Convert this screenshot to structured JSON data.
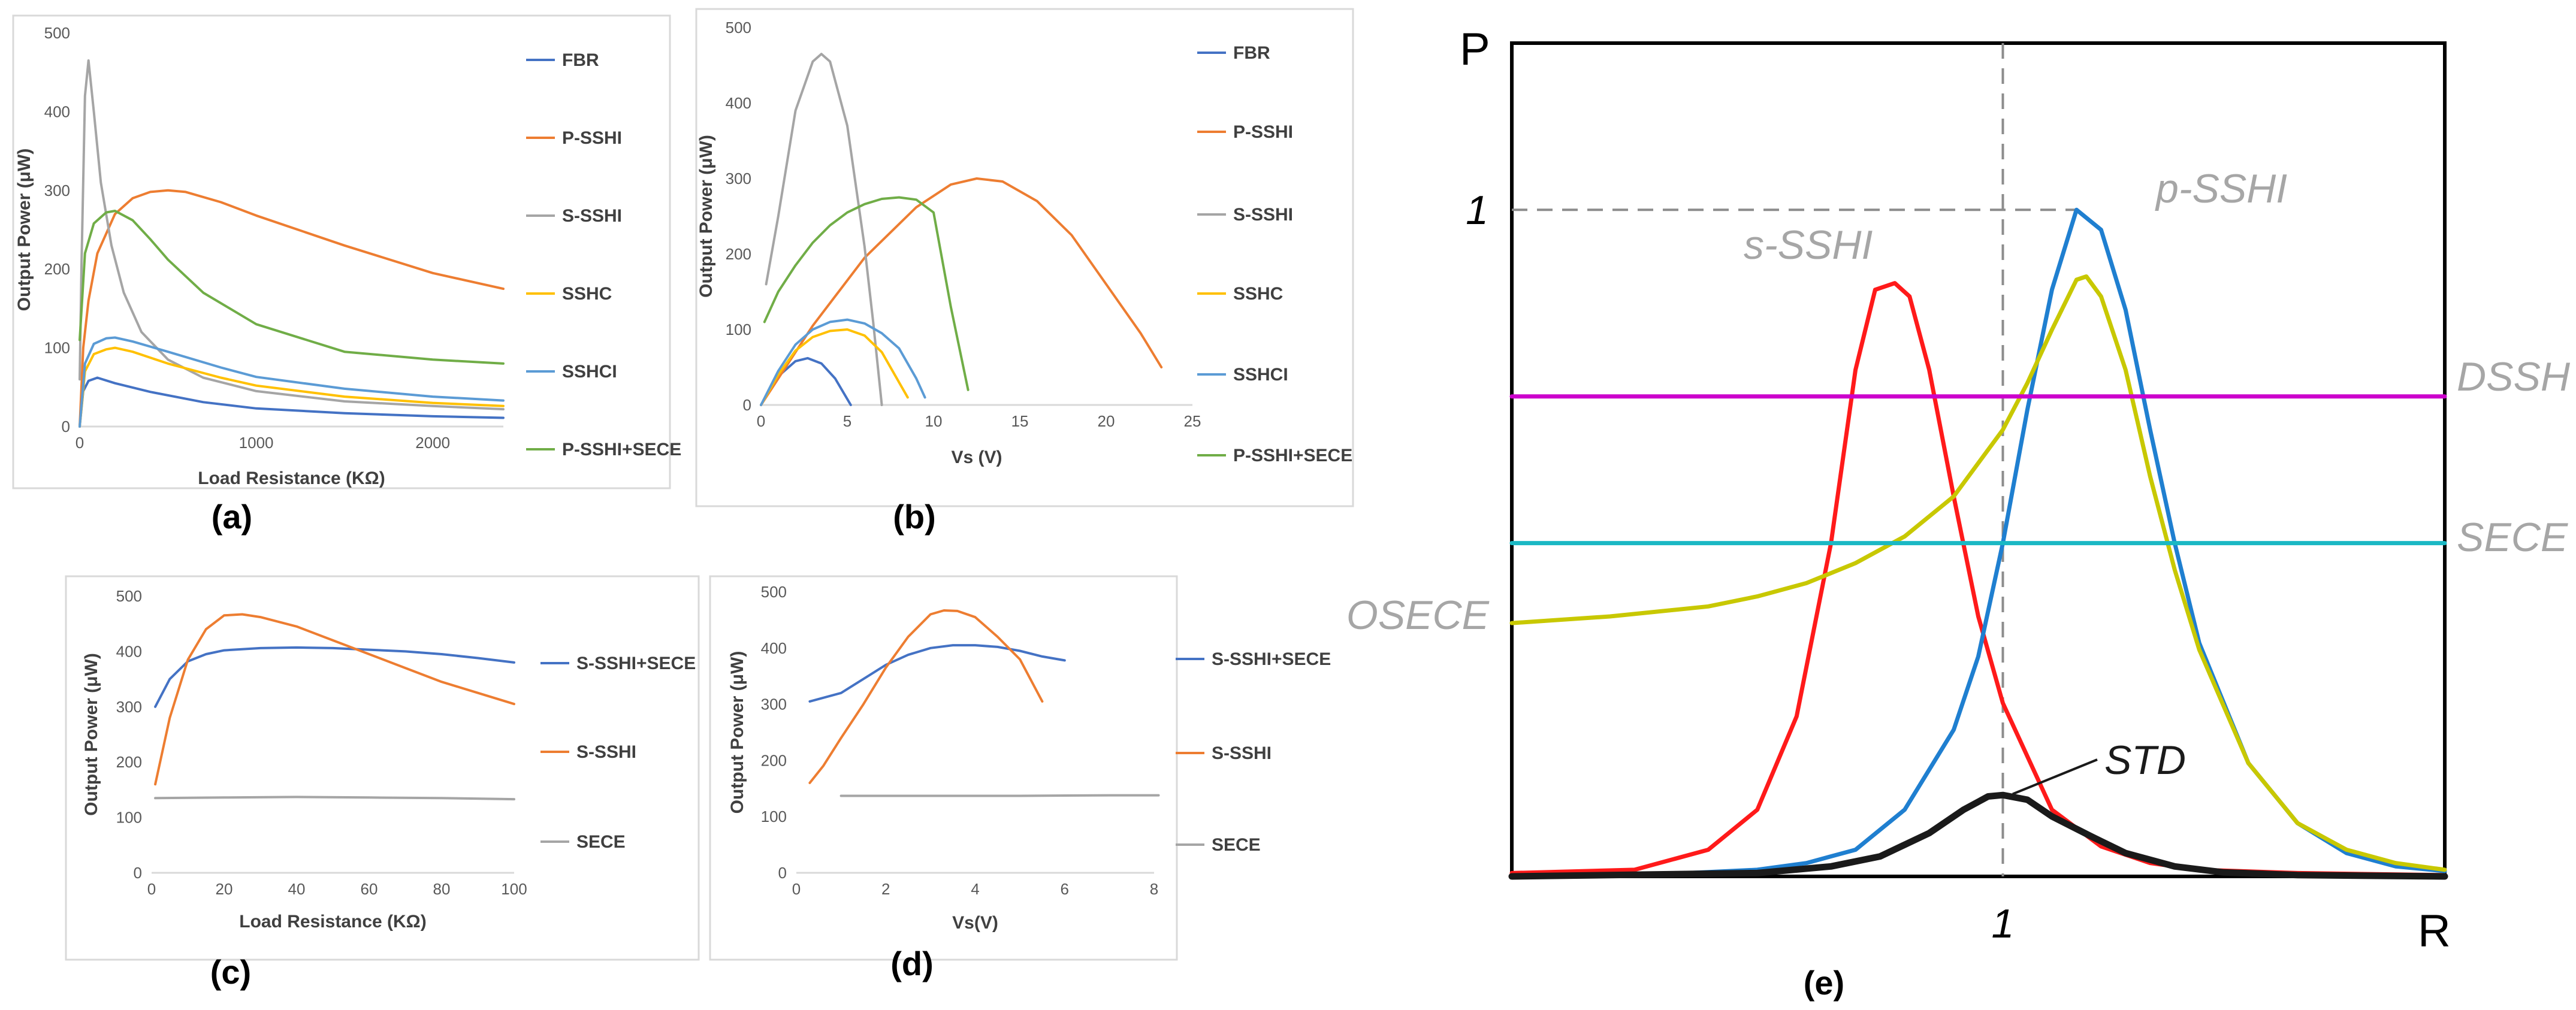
{
  "chart_data": [
    {
      "panel_label": "(a)",
      "type": "line",
      "xlabel": "Load Resistance (KΩ)",
      "ylabel": "Output Power (μW)",
      "xlim": [
        0,
        2400
      ],
      "ylim": [
        0,
        500
      ],
      "xticks": [
        0,
        1000,
        2000
      ],
      "yticks": [
        0,
        100,
        200,
        300,
        400,
        500
      ],
      "legend_position": "right",
      "series": [
        {
          "name": "FBR",
          "color": "#4472c4",
          "x": [
            0,
            20,
            50,
            100,
            200,
            400,
            700,
            1000,
            1500,
            2000,
            2400
          ],
          "y": [
            0,
            45,
            58,
            62,
            55,
            44,
            31,
            23,
            17,
            13,
            11
          ]
        },
        {
          "name": "P-SSHI",
          "color": "#ed7d31",
          "x": [
            0,
            20,
            50,
            100,
            200,
            300,
            400,
            500,
            600,
            800,
            1000,
            1500,
            2000,
            2400
          ],
          "y": [
            0,
            100,
            160,
            220,
            270,
            290,
            298,
            300,
            298,
            285,
            268,
            230,
            195,
            175
          ]
        },
        {
          "name": "S-SSHI",
          "color": "#a5a5a5",
          "x": [
            0,
            10,
            30,
            50,
            80,
            120,
            180,
            250,
            350,
            500,
            700,
            1000,
            1500,
            2000,
            2400
          ],
          "y": [
            60,
            200,
            420,
            465,
            400,
            310,
            230,
            170,
            120,
            85,
            62,
            45,
            32,
            26,
            22
          ]
        },
        {
          "name": "SSHC",
          "color": "#ffc000",
          "x": [
            0,
            30,
            80,
            150,
            200,
            300,
            500,
            800,
            1000,
            1500,
            2000,
            2400
          ],
          "y": [
            0,
            70,
            92,
            98,
            100,
            95,
            80,
            62,
            52,
            38,
            30,
            26
          ]
        },
        {
          "name": "SSHCI",
          "color": "#5b9bd5",
          "x": [
            0,
            30,
            80,
            150,
            200,
            300,
            500,
            800,
            1000,
            1500,
            2000,
            2400
          ],
          "y": [
            0,
            80,
            105,
            112,
            113,
            108,
            95,
            75,
            63,
            48,
            38,
            33
          ]
        },
        {
          "name": "P-SSHI+SECE",
          "color": "#70ad47",
          "x": [
            0,
            30,
            80,
            150,
            200,
            300,
            400,
            500,
            700,
            1000,
            1500,
            2000,
            2400
          ],
          "y": [
            110,
            220,
            258,
            272,
            274,
            262,
            238,
            212,
            170,
            130,
            95,
            85,
            80
          ]
        }
      ]
    },
    {
      "panel_label": "(b)",
      "type": "line",
      "xlabel": "Vs (V)",
      "ylabel": "Output Power (μW)",
      "xlim": [
        0,
        25
      ],
      "ylim": [
        0,
        500
      ],
      "xticks": [
        0,
        5,
        10,
        15,
        20,
        25
      ],
      "yticks": [
        0,
        100,
        200,
        300,
        400,
        500
      ],
      "legend_position": "right",
      "series": [
        {
          "name": "FBR",
          "color": "#4472c4",
          "x": [
            0,
            1,
            2,
            2.7,
            3.5,
            4.3,
            5.2
          ],
          "y": [
            0,
            38,
            58,
            62,
            55,
            35,
            0
          ]
        },
        {
          "name": "P-SSHI",
          "color": "#ed7d31",
          "x": [
            0,
            3,
            6,
            9,
            11,
            12.5,
            14,
            16,
            18,
            20,
            22,
            23.2
          ],
          "y": [
            0,
            105,
            195,
            262,
            292,
            300,
            296,
            270,
            225,
            160,
            95,
            50
          ]
        },
        {
          "name": "S-SSHI",
          "color": "#a5a5a5",
          "x": [
            0.3,
            1,
            2,
            3,
            3.5,
            4,
            5,
            6,
            6.5,
            7
          ],
          "y": [
            160,
            250,
            390,
            455,
            465,
            455,
            370,
            210,
            110,
            0
          ]
        },
        {
          "name": "SSHC",
          "color": "#ffc000",
          "x": [
            0,
            1,
            2,
            3,
            4,
            5,
            6,
            7,
            8,
            8.5
          ],
          "y": [
            0,
            40,
            72,
            90,
            98,
            100,
            92,
            70,
            30,
            10
          ]
        },
        {
          "name": "SSHCI",
          "color": "#5b9bd5",
          "x": [
            0,
            1,
            2,
            3,
            4,
            5,
            6,
            7,
            8,
            9,
            9.5
          ],
          "y": [
            0,
            45,
            80,
            100,
            110,
            113,
            108,
            95,
            75,
            35,
            10
          ]
        },
        {
          "name": "P-SSHI+SECE",
          "color": "#70ad47",
          "x": [
            0.2,
            1,
            2,
            3,
            4,
            5,
            6,
            7,
            8,
            9,
            10,
            11,
            12
          ],
          "y": [
            110,
            150,
            185,
            215,
            238,
            255,
            266,
            273,
            275,
            272,
            255,
            130,
            20
          ]
        }
      ]
    },
    {
      "panel_label": "(c)",
      "type": "line",
      "xlabel": "Load Resistance (KΩ)",
      "ylabel": "Output Power (μW)",
      "xlim": [
        0,
        100
      ],
      "ylim": [
        0,
        500
      ],
      "xticks": [
        0,
        20,
        40,
        60,
        80,
        100
      ],
      "yticks": [
        0,
        100,
        200,
        300,
        400,
        500
      ],
      "legend_position": "right",
      "series": [
        {
          "name": "S-SSHI+SECE",
          "color": "#4472c4",
          "x": [
            1,
            5,
            10,
            15,
            20,
            30,
            40,
            50,
            60,
            70,
            80,
            90,
            100
          ],
          "y": [
            300,
            350,
            382,
            395,
            402,
            406,
            407,
            406,
            403,
            400,
            395,
            388,
            380
          ]
        },
        {
          "name": "S-SSHI",
          "color": "#ed7d31",
          "x": [
            1,
            5,
            10,
            15,
            20,
            25,
            30,
            40,
            50,
            60,
            70,
            80,
            90,
            100
          ],
          "y": [
            160,
            280,
            385,
            440,
            465,
            467,
            462,
            445,
            420,
            395,
            370,
            345,
            325,
            305
          ]
        },
        {
          "name": "SECE",
          "color": "#a5a5a5",
          "x": [
            1,
            20,
            40,
            60,
            80,
            100
          ],
          "y": [
            135,
            136,
            137,
            136,
            135,
            133
          ]
        }
      ]
    },
    {
      "panel_label": "(d)",
      "type": "line",
      "xlabel": "Vs(V)",
      "ylabel": "Output Power (μW)",
      "xlim": [
        0,
        8
      ],
      "ylim": [
        0,
        500
      ],
      "xticks": [
        0,
        2,
        4,
        6,
        8
      ],
      "yticks": [
        0,
        100,
        200,
        300,
        400,
        500
      ],
      "legend_position": "right",
      "series": [
        {
          "name": "S-SSHI+SECE",
          "color": "#4472c4",
          "x": [
            0.3,
            1,
            1.5,
            2,
            2.5,
            3,
            3.5,
            4,
            4.5,
            5,
            5.5,
            6
          ],
          "y": [
            305,
            320,
            345,
            370,
            388,
            400,
            405,
            405,
            402,
            395,
            385,
            378
          ]
        },
        {
          "name": "S-SSHI",
          "color": "#ed7d31",
          "x": [
            0.3,
            0.6,
            1,
            1.5,
            2,
            2.5,
            3,
            3.3,
            3.6,
            4,
            4.5,
            5,
            5.5
          ],
          "y": [
            160,
            190,
            240,
            300,
            365,
            420,
            460,
            467,
            466,
            455,
            420,
            380,
            305
          ]
        },
        {
          "name": "SECE",
          "color": "#a5a5a5",
          "x": [
            1,
            3,
            5,
            7,
            8.1
          ],
          "y": [
            137,
            137,
            137,
            138,
            138
          ]
        }
      ]
    },
    {
      "panel_label": "(e)",
      "type": "line",
      "xlabel": "R",
      "ylabel": "P",
      "xlim": [
        0,
        1.9
      ],
      "ylim": [
        0,
        1.25
      ],
      "xticks": [
        1
      ],
      "xtick_labels": [
        "1"
      ],
      "yticks": [
        1
      ],
      "ytick_labels": [
        "1"
      ],
      "grid": false,
      "series": [
        {
          "name": "s-SSHI",
          "color": "#ff1a1a",
          "x": [
            0,
            0.25,
            0.4,
            0.5,
            0.58,
            0.65,
            0.7,
            0.74,
            0.78,
            0.81,
            0.85,
            0.9,
            0.95,
            1.0,
            1.1,
            1.2,
            1.3,
            1.4,
            1.6,
            1.9
          ],
          "y": [
            0.005,
            0.01,
            0.04,
            0.1,
            0.24,
            0.5,
            0.76,
            0.88,
            0.89,
            0.87,
            0.76,
            0.57,
            0.39,
            0.26,
            0.1,
            0.045,
            0.02,
            0.01,
            0.005,
            0.002
          ]
        },
        {
          "name": "p-SSHI",
          "color": "#1f7fd0",
          "x": [
            0,
            0.3,
            0.5,
            0.6,
            0.7,
            0.8,
            0.9,
            0.95,
            1.0,
            1.05,
            1.1,
            1.15,
            1.2,
            1.25,
            1.3,
            1.35,
            1.4,
            1.5,
            1.6,
            1.7,
            1.8,
            1.9
          ],
          "y": [
            0,
            0.003,
            0.01,
            0.02,
            0.04,
            0.1,
            0.22,
            0.33,
            0.5,
            0.7,
            0.88,
            1.0,
            0.97,
            0.85,
            0.67,
            0.5,
            0.35,
            0.17,
            0.08,
            0.035,
            0.015,
            0.008
          ]
        },
        {
          "name": "OSECE",
          "color": "#c8c800",
          "x": [
            0,
            0.2,
            0.4,
            0.5,
            0.6,
            0.7,
            0.8,
            0.9,
            1.0,
            1.05,
            1.1,
            1.15,
            1.17,
            1.2,
            1.25,
            1.3,
            1.35,
            1.4,
            1.5,
            1.6,
            1.7,
            1.8,
            1.9
          ],
          "y": [
            0.38,
            0.39,
            0.405,
            0.42,
            0.44,
            0.47,
            0.51,
            0.57,
            0.67,
            0.74,
            0.82,
            0.895,
            0.9,
            0.87,
            0.76,
            0.6,
            0.46,
            0.34,
            0.17,
            0.08,
            0.04,
            0.02,
            0.01
          ]
        },
        {
          "name": "DSSH",
          "color": "#cc00cc",
          "x": [
            0,
            1.9
          ],
          "y": [
            0.72,
            0.72
          ]
        },
        {
          "name": "SECE",
          "color": "#1ab8c4",
          "x": [
            0,
            1.9
          ],
          "y": [
            0.5,
            0.5
          ]
        },
        {
          "name": "STD",
          "color": "#1a1a1a",
          "x": [
            0,
            0.5,
            0.65,
            0.75,
            0.85,
            0.92,
            0.97,
            1.0,
            1.05,
            1.1,
            1.18,
            1.25,
            1.35,
            1.45,
            1.6,
            1.9
          ],
          "y": [
            0,
            0.005,
            0.015,
            0.03,
            0.065,
            0.1,
            0.12,
            0.122,
            0.115,
            0.09,
            0.06,
            0.035,
            0.015,
            0.006,
            0.002,
            0
          ]
        }
      ]
    }
  ]
}
